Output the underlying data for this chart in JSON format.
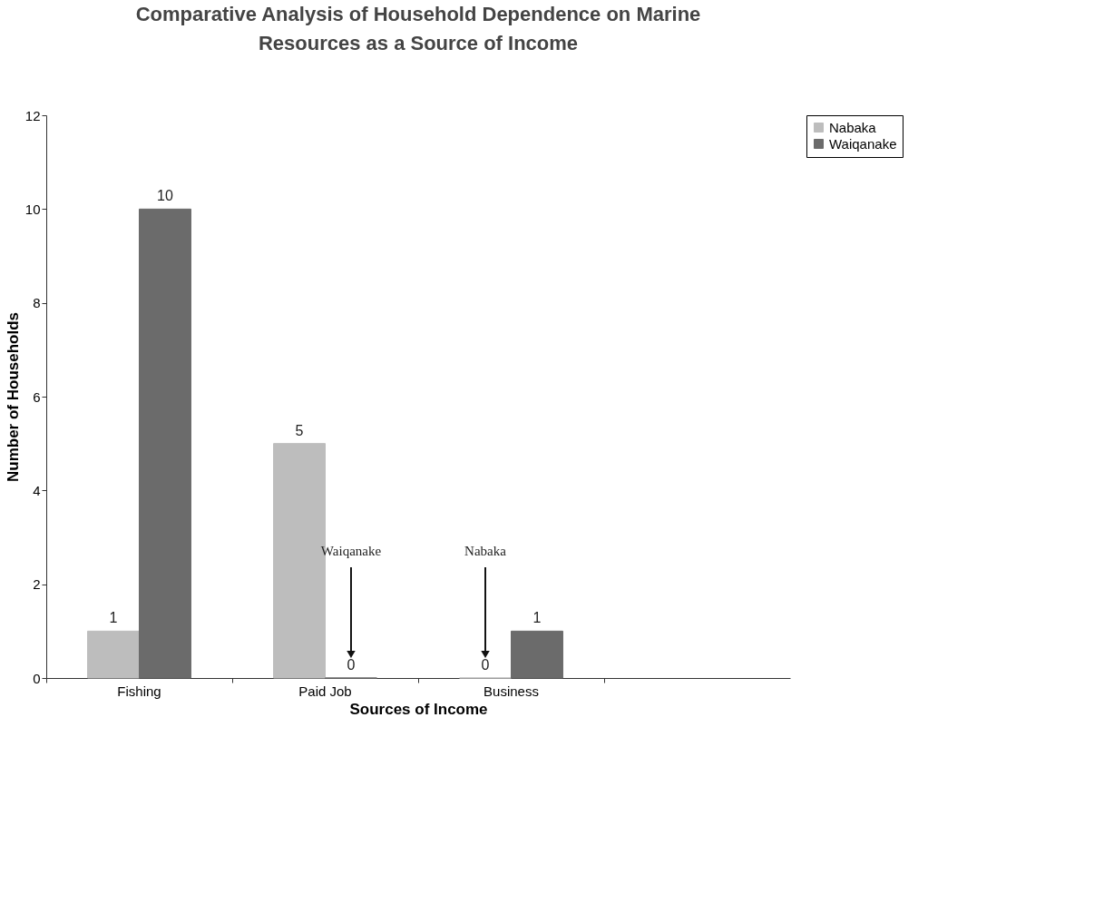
{
  "chart_data": {
    "type": "bar",
    "title": "Comparative Analysis of Household Dependence on Marine Resources as a Source of Income",
    "xlabel": "Sources of Income",
    "ylabel": "Number of Households",
    "categories": [
      "Fishing",
      "Paid Job",
      "Business",
      null
    ],
    "series": [
      {
        "name": "Nabaka",
        "color": "#bdbdbd",
        "values": [
          1,
          5,
          0,
          null
        ]
      },
      {
        "name": "Waiqanake",
        "color": "#6b6b6b",
        "values": [
          10,
          0,
          1,
          null
        ]
      }
    ],
    "ylim": [
      0,
      12
    ],
    "yticks": [
      0,
      2,
      4,
      6,
      8,
      10,
      12
    ],
    "grid": false,
    "legend": "right",
    "data_labels": true,
    "annotations": [
      "Waiqanake",
      "Nabaka"
    ]
  }
}
